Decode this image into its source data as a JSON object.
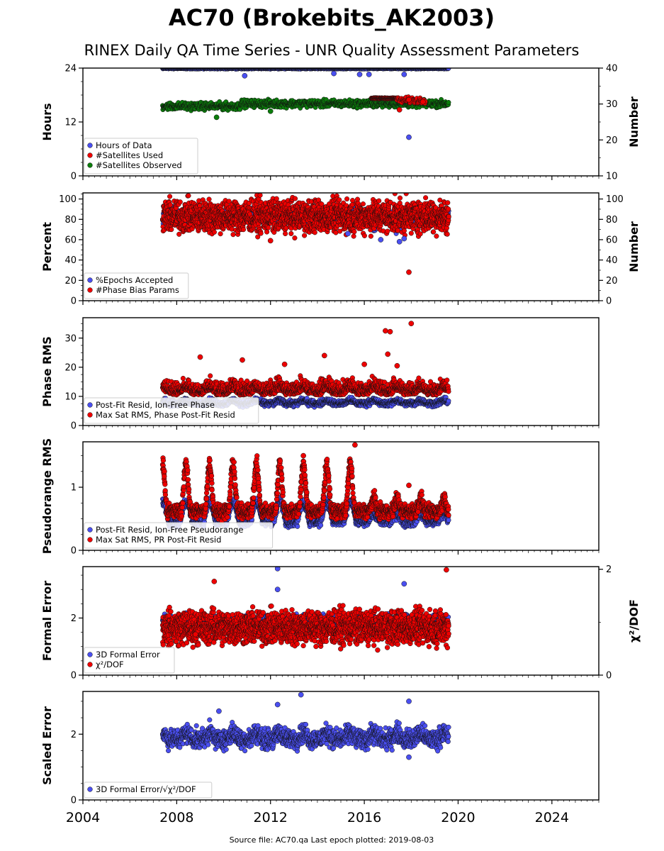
{
  "title": "AC70 (Brokebits_AK2003)",
  "subtitle": "RINEX Daily QA Time Series - UNR Quality Assessment Parameters",
  "footer": "Source file: AC70.qa Last epoch plotted: 2019-08-03",
  "x_axis": {
    "range": [
      2004.0,
      2026.0
    ],
    "ticks": [
      "2004",
      "2008",
      "2012",
      "2016",
      "2020",
      "2024"
    ]
  },
  "colors": {
    "blue": "#4a4ff0",
    "red": "#ee0000",
    "green": "#0b7d0b",
    "edge": "#111111"
  },
  "chart_data": [
    {
      "type": "scatter",
      "ylabel": "Hours",
      "ylabel_right": "Number",
      "ylim": [
        0,
        24
      ],
      "yticks": [
        "0",
        "12",
        "24"
      ],
      "ylim_right": [
        10,
        40
      ],
      "yticks_right": [
        "10",
        "20",
        "30",
        "40"
      ],
      "legend_position": "lower-left",
      "series": [
        {
          "name": "Hours of Data",
          "color": "#4a4ff0",
          "axis": "left",
          "x_range": [
            2007.4,
            2019.6
          ],
          "points": [
            [
              2010.9,
              22.3
            ],
            [
              2014.7,
              22.8
            ],
            [
              2015.8,
              22.6
            ],
            [
              2016.2,
              22.6
            ],
            [
              2017.7,
              22.6
            ],
            [
              2017.9,
              8.6
            ]
          ]
        },
        {
          "name": "#Satellites Used",
          "color": "#ee0000",
          "axis": "right",
          "x_range": [
            2016.2,
            2018.7
          ],
          "points": [
            [
              2017.5,
              28.4
            ],
            [
              2017.9,
              31.2
            ],
            [
              2018.5,
              30.6
            ]
          ]
        },
        {
          "name": "#Satellites Observed",
          "color": "#0b7d0b",
          "axis": "right",
          "x_range": [
            2007.4,
            2019.6
          ],
          "points": [
            [
              2009.7,
              26.3
            ],
            [
              2012.0,
              28.0
            ]
          ]
        }
      ]
    },
    {
      "type": "scatter",
      "ylabel": "Percent",
      "ylabel_right": "Number",
      "ylim": [
        0,
        106
      ],
      "yticks": [
        "0",
        "20",
        "40",
        "60",
        "80",
        "100"
      ],
      "ylim_right": [
        0,
        106
      ],
      "yticks_right": [
        "0",
        "20",
        "40",
        "60",
        "80",
        "100"
      ],
      "legend_position": "lower-left",
      "series": [
        {
          "name": "%Epochs Accepted",
          "color": "#4a4ff0",
          "axis": "left",
          "x_range": [
            2007.4,
            2019.6
          ],
          "points": [
            [
              2016.7,
              60.0
            ],
            [
              2017.5,
              58.0
            ],
            [
              2017.7,
              61.0
            ],
            [
              2015.3,
              66.0
            ]
          ]
        },
        {
          "name": "#Phase Bias Params",
          "color": "#ee0000",
          "axis": "right",
          "x_range": [
            2007.4,
            2019.6
          ],
          "points": [
            [
              2017.9,
              28.0
            ],
            [
              2012.0,
              59.0
            ]
          ]
        }
      ]
    },
    {
      "type": "scatter",
      "ylabel": "Phase RMS",
      "ylim": [
        0,
        37
      ],
      "yticks": [
        "0",
        "10",
        "20",
        "30"
      ],
      "legend_position": "lower-left",
      "series": [
        {
          "name": "Post-Fit Resid, Ion-Free Phase",
          "color": "#4a4ff0",
          "axis": "left",
          "x_range": [
            2007.4,
            2019.6
          ],
          "points": []
        },
        {
          "name": "Max Sat RMS, Phase Post-Fit Resid",
          "color": "#ee0000",
          "axis": "left",
          "x_range": [
            2007.4,
            2019.6
          ],
          "points": [
            [
              2009.0,
              23.5
            ],
            [
              2014.3,
              24.0
            ],
            [
              2016.9,
              32.5
            ],
            [
              2017.1,
              32.2
            ],
            [
              2017.0,
              24.5
            ],
            [
              2018.0,
              35.0
            ],
            [
              2016.0,
              21.0
            ],
            [
              2017.4,
              20.5
            ],
            [
              2010.8,
              22.5
            ],
            [
              2012.6,
              21.0
            ]
          ]
        }
      ]
    },
    {
      "type": "scatter",
      "ylabel": "Pseudorange RMS",
      "ylim": [
        0,
        1.72
      ],
      "yticks": [
        "0",
        "1"
      ],
      "legend_position": "lower-left",
      "series": [
        {
          "name": "Post-Fit Resid, Ion-Free Pseudorange",
          "color": "#4a4ff0",
          "axis": "left",
          "x_range": [
            2007.4,
            2019.6
          ],
          "points": []
        },
        {
          "name": "Max Sat RMS, PR Post-Fit Resid",
          "color": "#ee0000",
          "axis": "left",
          "x_range": [
            2007.4,
            2019.6
          ],
          "points": [
            [
              2015.6,
              1.67
            ],
            [
              2013.4,
              1.5
            ],
            [
              2017.9,
              1.03
            ]
          ]
        }
      ]
    },
    {
      "type": "scatter",
      "ylabel": "Formal Error",
      "ylabel_right": "χ²/DOF",
      "ylim": [
        0,
        3.8
      ],
      "yticks": [
        "0",
        "2"
      ],
      "ylim_right": [
        0,
        2.05
      ],
      "yticks_right": [
        "0",
        "2"
      ],
      "legend_position": "lower-left",
      "series": [
        {
          "name": "3D Formal Error",
          "color": "#4a4ff0",
          "axis": "left",
          "x_range": [
            2007.4,
            2019.6
          ],
          "points": [
            [
              2012.3,
              3.73
            ],
            [
              2017.7,
              3.2
            ],
            [
              2012.3,
              3.0
            ]
          ]
        },
        {
          "name": "χ²/DOF",
          "color": "#ee0000",
          "axis": "right",
          "x_range": [
            2007.4,
            2019.6
          ],
          "points": [
            [
              2009.6,
              1.77
            ],
            [
              2019.5,
              1.99
            ],
            [
              2008.8,
              0.77
            ]
          ]
        }
      ]
    },
    {
      "type": "scatter",
      "ylabel": "Scaled Error",
      "ylim": [
        0,
        3.3
      ],
      "yticks": [
        "0",
        "2"
      ],
      "legend_position": "lower-left",
      "series": [
        {
          "name": "3D Formal Error/√χ²/DOF",
          "color": "#4a4ff0",
          "axis": "left",
          "x_range": [
            2007.4,
            2019.6
          ],
          "points": [
            [
              2013.3,
              3.2
            ],
            [
              2017.9,
              3.0
            ],
            [
              2012.3,
              2.9
            ],
            [
              2009.8,
              2.7
            ],
            [
              2017.9,
              1.3
            ]
          ]
        }
      ]
    }
  ]
}
